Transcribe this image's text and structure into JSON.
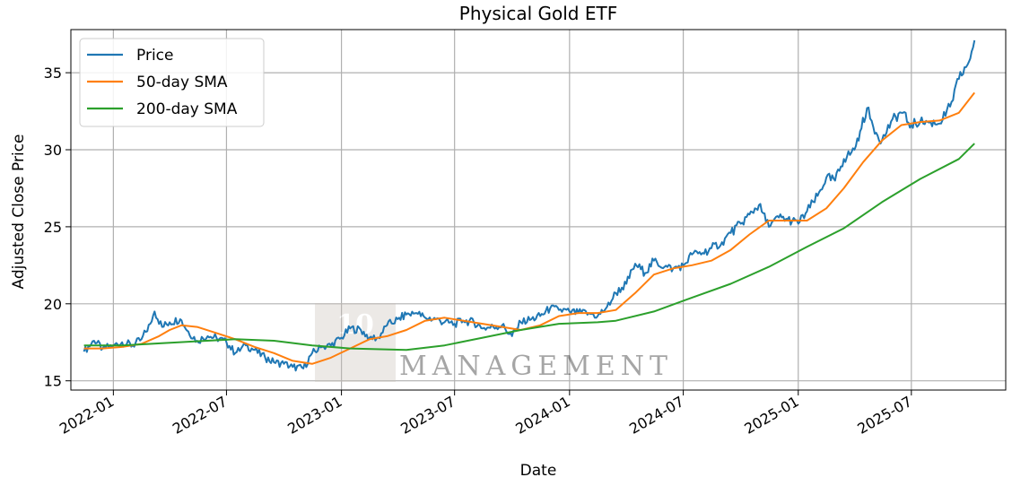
{
  "chart_data": {
    "type": "line",
    "title": "Physical Gold ETF",
    "xlabel": "Date",
    "ylabel": "Adjusted Close Price",
    "x_range": [
      "2021-10-25",
      "2025-11-29"
    ],
    "ylim": [
      14.4,
      37.8
    ],
    "x_ticks": [
      {
        "date": "2022-01-01",
        "label": "2022-01"
      },
      {
        "date": "2022-07-01",
        "label": "2022-07"
      },
      {
        "date": "2023-01-01",
        "label": "2023-01"
      },
      {
        "date": "2023-07-01",
        "label": "2023-07"
      },
      {
        "date": "2024-01-01",
        "label": "2024-01"
      },
      {
        "date": "2024-07-01",
        "label": "2024-07"
      },
      {
        "date": "2025-01-01",
        "label": "2025-01"
      },
      {
        "date": "2025-07-01",
        "label": "2025-07"
      }
    ],
    "y_ticks": [
      15,
      20,
      25,
      30,
      35
    ],
    "grid": true,
    "legend_position": "top-left",
    "series": [
      {
        "name": "Price",
        "color": "#1f77b4",
        "points": [
          [
            "2021-11-15",
            16.9
          ],
          [
            "2021-12-01",
            17.6
          ],
          [
            "2021-12-15",
            17.1
          ],
          [
            "2022-01-01",
            17.3
          ],
          [
            "2022-01-15",
            17.5
          ],
          [
            "2022-02-01",
            17.3
          ],
          [
            "2022-02-15",
            17.7
          ],
          [
            "2022-03-01",
            18.7
          ],
          [
            "2022-03-08",
            19.5
          ],
          [
            "2022-03-20",
            18.5
          ],
          [
            "2022-04-01",
            18.8
          ],
          [
            "2022-04-18",
            19.0
          ],
          [
            "2022-05-01",
            18.2
          ],
          [
            "2022-05-15",
            17.6
          ],
          [
            "2022-06-01",
            17.9
          ],
          [
            "2022-06-15",
            17.8
          ],
          [
            "2022-07-01",
            17.5
          ],
          [
            "2022-07-15",
            16.8
          ],
          [
            "2022-08-01",
            17.3
          ],
          [
            "2022-08-15",
            17.0
          ],
          [
            "2022-09-01",
            16.5
          ],
          [
            "2022-09-15",
            16.2
          ],
          [
            "2022-10-01",
            16.1
          ],
          [
            "2022-10-15",
            15.9
          ],
          [
            "2022-11-01",
            15.8
          ],
          [
            "2022-11-15",
            16.8
          ],
          [
            "2022-12-01",
            17.2
          ],
          [
            "2022-12-15",
            17.3
          ],
          [
            "2023-01-01",
            17.8
          ],
          [
            "2023-01-15",
            18.4
          ],
          [
            "2023-02-01",
            18.3
          ],
          [
            "2023-02-15",
            17.8
          ],
          [
            "2023-03-01",
            17.8
          ],
          [
            "2023-03-15",
            18.6
          ],
          [
            "2023-04-01",
            19.0
          ],
          [
            "2023-04-15",
            19.3
          ],
          [
            "2023-05-01",
            19.4
          ],
          [
            "2023-05-15",
            19.1
          ],
          [
            "2023-06-01",
            19.0
          ],
          [
            "2023-06-15",
            18.8
          ],
          [
            "2023-07-01",
            18.7
          ],
          [
            "2023-07-15",
            18.9
          ],
          [
            "2023-08-01",
            18.8
          ],
          [
            "2023-08-15",
            18.4
          ],
          [
            "2023-09-01",
            18.5
          ],
          [
            "2023-09-15",
            18.6
          ],
          [
            "2023-10-01",
            17.9
          ],
          [
            "2023-10-15",
            18.8
          ],
          [
            "2023-11-01",
            19.0
          ],
          [
            "2023-11-15",
            19.2
          ],
          [
            "2023-12-01",
            19.7
          ],
          [
            "2023-12-15",
            19.6
          ],
          [
            "2024-01-01",
            19.5
          ],
          [
            "2024-01-15",
            19.4
          ],
          [
            "2024-02-01",
            19.4
          ],
          [
            "2024-02-15",
            19.2
          ],
          [
            "2024-03-01",
            19.8
          ],
          [
            "2024-03-15",
            20.7
          ],
          [
            "2024-04-01",
            21.3
          ],
          [
            "2024-04-15",
            22.6
          ],
          [
            "2024-05-01",
            22.0
          ],
          [
            "2024-05-15",
            22.8
          ],
          [
            "2024-06-01",
            22.4
          ],
          [
            "2024-06-15",
            22.3
          ],
          [
            "2024-07-01",
            22.5
          ],
          [
            "2024-07-15",
            23.2
          ],
          [
            "2024-08-01",
            23.3
          ],
          [
            "2024-08-15",
            23.6
          ],
          [
            "2024-09-01",
            24.0
          ],
          [
            "2024-09-15",
            24.6
          ],
          [
            "2024-10-01",
            25.2
          ],
          [
            "2024-10-15",
            25.8
          ],
          [
            "2024-10-30",
            26.4
          ],
          [
            "2024-11-15",
            25.0
          ],
          [
            "2024-12-01",
            25.6
          ],
          [
            "2024-12-15",
            25.5
          ],
          [
            "2025-01-01",
            25.2
          ],
          [
            "2025-01-15",
            26.0
          ],
          [
            "2025-02-01",
            27.0
          ],
          [
            "2025-02-15",
            28.2
          ],
          [
            "2025-03-01",
            28.0
          ],
          [
            "2025-03-15",
            29.4
          ],
          [
            "2025-04-01",
            30.0
          ],
          [
            "2025-04-10",
            31.2
          ],
          [
            "2025-04-21",
            32.7
          ],
          [
            "2025-05-01",
            31.5
          ],
          [
            "2025-05-15",
            30.6
          ],
          [
            "2025-06-01",
            32.0
          ],
          [
            "2025-06-15",
            32.4
          ],
          [
            "2025-07-01",
            31.6
          ],
          [
            "2025-07-15",
            31.8
          ],
          [
            "2025-08-01",
            31.8
          ],
          [
            "2025-08-15",
            31.7
          ],
          [
            "2025-09-01",
            32.8
          ],
          [
            "2025-09-15",
            34.6
          ],
          [
            "2025-10-01",
            35.7
          ],
          [
            "2025-10-10",
            37.1
          ]
        ]
      },
      {
        "name": "50-day SMA",
        "color": "#ff7f0e",
        "points": [
          [
            "2021-11-15",
            17.1
          ],
          [
            "2021-12-15",
            17.1
          ],
          [
            "2022-01-15",
            17.2
          ],
          [
            "2022-02-15",
            17.4
          ],
          [
            "2022-03-15",
            17.9
          ],
          [
            "2022-04-01",
            18.3
          ],
          [
            "2022-04-20",
            18.6
          ],
          [
            "2022-05-15",
            18.5
          ],
          [
            "2022-06-15",
            18.1
          ],
          [
            "2022-07-15",
            17.7
          ],
          [
            "2022-08-15",
            17.2
          ],
          [
            "2022-09-15",
            16.8
          ],
          [
            "2022-10-15",
            16.3
          ],
          [
            "2022-11-15",
            16.1
          ],
          [
            "2022-12-15",
            16.5
          ],
          [
            "2023-01-15",
            17.1
          ],
          [
            "2023-02-15",
            17.7
          ],
          [
            "2023-03-15",
            17.9
          ],
          [
            "2023-04-15",
            18.3
          ],
          [
            "2023-05-15",
            18.9
          ],
          [
            "2023-06-15",
            19.1
          ],
          [
            "2023-07-15",
            18.9
          ],
          [
            "2023-08-15",
            18.7
          ],
          [
            "2023-09-15",
            18.5
          ],
          [
            "2023-10-15",
            18.3
          ],
          [
            "2023-11-15",
            18.6
          ],
          [
            "2023-12-15",
            19.2
          ],
          [
            "2024-01-15",
            19.4
          ],
          [
            "2024-02-15",
            19.4
          ],
          [
            "2024-03-15",
            19.6
          ],
          [
            "2024-04-15",
            20.7
          ],
          [
            "2024-05-15",
            21.9
          ],
          [
            "2024-06-15",
            22.3
          ],
          [
            "2024-07-15",
            22.5
          ],
          [
            "2024-08-15",
            22.8
          ],
          [
            "2024-09-15",
            23.5
          ],
          [
            "2024-10-15",
            24.5
          ],
          [
            "2024-11-15",
            25.4
          ],
          [
            "2024-12-15",
            25.4
          ],
          [
            "2025-01-15",
            25.4
          ],
          [
            "2025-02-15",
            26.2
          ],
          [
            "2025-03-15",
            27.5
          ],
          [
            "2025-04-15",
            29.2
          ],
          [
            "2025-05-15",
            30.6
          ],
          [
            "2025-06-15",
            31.6
          ],
          [
            "2025-07-15",
            31.8
          ],
          [
            "2025-08-15",
            31.9
          ],
          [
            "2025-09-15",
            32.4
          ],
          [
            "2025-10-10",
            33.7
          ]
        ]
      },
      {
        "name": "200-day SMA",
        "color": "#2ca02c",
        "points": [
          [
            "2021-11-15",
            17.3
          ],
          [
            "2022-01-15",
            17.3
          ],
          [
            "2022-04-15",
            17.5
          ],
          [
            "2022-07-15",
            17.7
          ],
          [
            "2022-09-15",
            17.6
          ],
          [
            "2022-11-15",
            17.3
          ],
          [
            "2023-01-15",
            17.1
          ],
          [
            "2023-04-15",
            17.0
          ],
          [
            "2023-06-15",
            17.3
          ],
          [
            "2023-08-15",
            17.8
          ],
          [
            "2023-10-15",
            18.3
          ],
          [
            "2023-12-15",
            18.7
          ],
          [
            "2024-02-15",
            18.8
          ],
          [
            "2024-03-15",
            18.9
          ],
          [
            "2024-05-15",
            19.5
          ],
          [
            "2024-07-15",
            20.4
          ],
          [
            "2024-09-15",
            21.3
          ],
          [
            "2024-11-15",
            22.4
          ],
          [
            "2025-01-15",
            23.7
          ],
          [
            "2025-03-15",
            24.9
          ],
          [
            "2025-05-15",
            26.6
          ],
          [
            "2025-07-15",
            28.1
          ],
          [
            "2025-09-15",
            29.4
          ],
          [
            "2025-10-10",
            30.4
          ]
        ]
      }
    ]
  },
  "watermark": {
    "line1": "10",
    "line2": "MANAGEMENT",
    "color": "#d9bfa0"
  }
}
